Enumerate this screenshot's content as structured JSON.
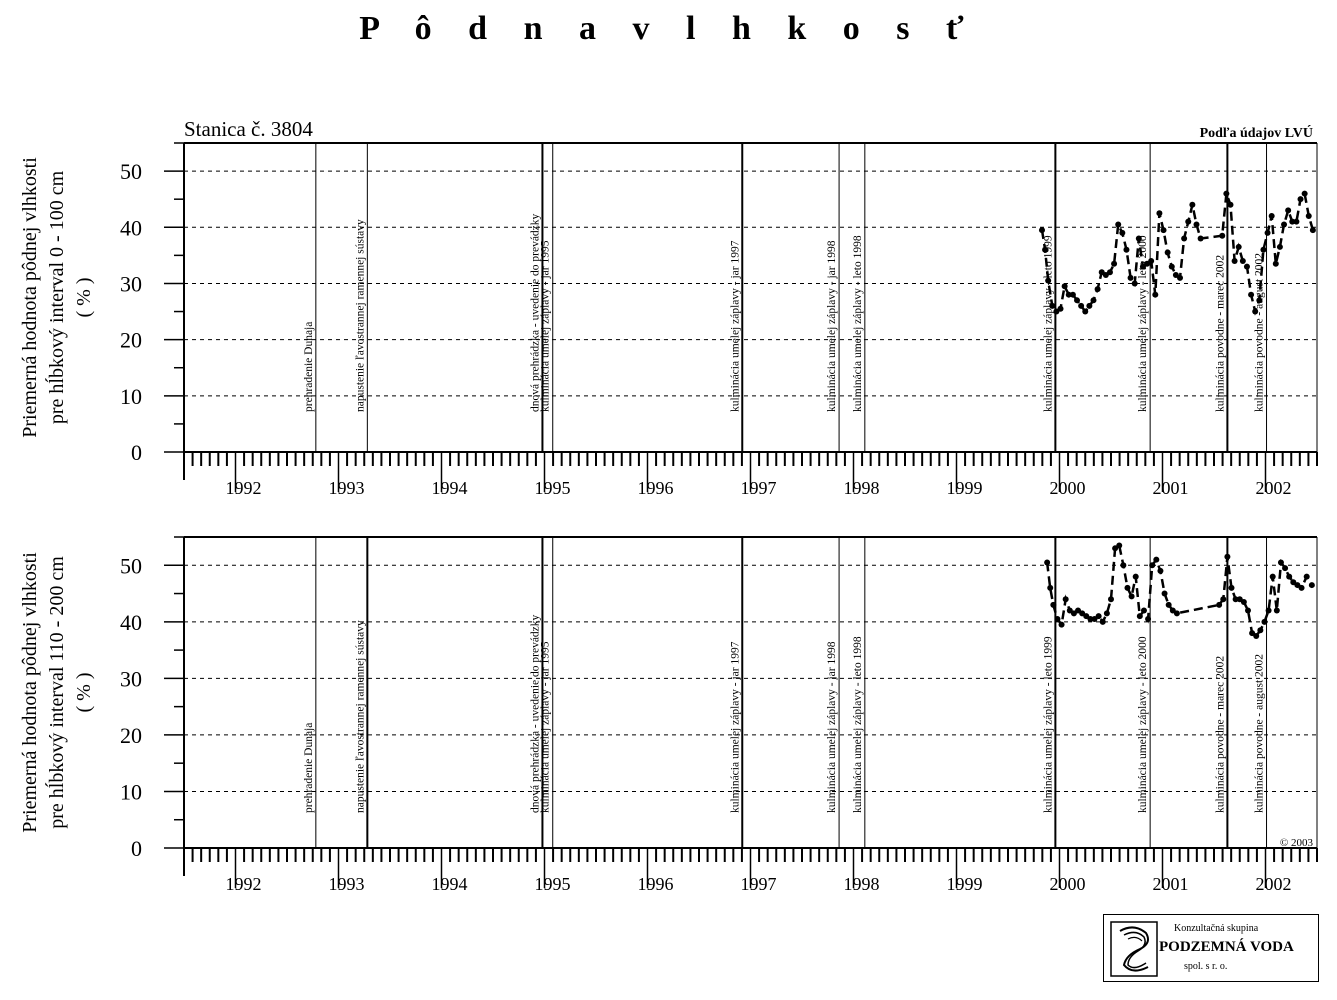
{
  "title": "P ô d n a   v l h k o s ť",
  "station": "Stanica č.  3804",
  "source_note": "Podľa údajov LVÚ",
  "copyright": "©  2003",
  "logo": {
    "line1": "Konzultačná skupina",
    "line2": "PODZEMNÁ VODA",
    "line3": "spol. s r. o."
  },
  "events": [
    {
      "x": 1992.78,
      "label": "prehradenie Dunaja"
    },
    {
      "x": 1993.28,
      "label": "napustenie ľavostrannej ramennej sústavy"
    },
    {
      "x": 1994.98,
      "label": "dnová prehrádzka - uvedenie do prevádzky"
    },
    {
      "x": 1995.08,
      "label": "kulminácia umelej záplavy - jar 1995"
    },
    {
      "x": 1996.92,
      "label": "kulminácia umelej záplavy - jar 1997"
    },
    {
      "x": 1997.86,
      "label": "kulminácia umelej záplavy - jar 1998"
    },
    {
      "x": 1998.11,
      "label": "kulminácia umelej záplavy - leto 1998"
    },
    {
      "x": 1999.96,
      "label": "kulminácia umelej záplavy - leto 1999"
    },
    {
      "x": 2000.88,
      "label": "kulminácia umelej záplavy - leto 2000"
    },
    {
      "x": 2001.63,
      "label": "kulminácia povodne - marec 2002"
    },
    {
      "x": 2002.01,
      "label": "kulminácia povodne - august 2002"
    }
  ],
  "chart_data": [
    {
      "type": "line",
      "ylabel": [
        "Priemerná hodnota pôdnej vlhkosti",
        "pre hĺbkový interval 0 - 100 cm",
        "( % )"
      ],
      "xlim": [
        1991.5,
        2002.5
      ],
      "ylim": [
        0,
        55
      ],
      "x_tick_labels": [
        "1992",
        "1993",
        "1994",
        "1995",
        "1996",
        "1997",
        "1998",
        "1999",
        "2000",
        "2001",
        "2002"
      ],
      "y_tick_labels": [
        "0",
        "10",
        "20",
        "30",
        "40",
        "50"
      ],
      "grid": "horizontal dashed",
      "x": [
        1999.83,
        1999.86,
        1999.89,
        1999.93,
        1999.97,
        2000.01,
        2000.05,
        2000.09,
        2000.13,
        2000.17,
        2000.21,
        2000.25,
        2000.29,
        2000.33,
        2000.37,
        2000.41,
        2000.45,
        2000.49,
        2000.53,
        2000.57,
        2000.61,
        2000.65,
        2000.69,
        2000.73,
        2000.77,
        2000.81,
        2000.85,
        2000.89,
        2000.93,
        2000.97,
        2001.01,
        2001.05,
        2001.09,
        2001.13,
        2001.17,
        2001.21,
        2001.25,
        2001.29,
        2001.33,
        2001.37,
        2001.58,
        2001.62,
        2001.66,
        2001.7,
        2001.74,
        2001.78,
        2001.82,
        2001.86,
        2001.9,
        2001.94,
        2001.98,
        2002.02,
        2002.06,
        2002.1,
        2002.14,
        2002.18,
        2002.22,
        2002.26,
        2002.3,
        2002.34,
        2002.38,
        2002.42,
        2002.46
      ],
      "y": [
        39.5,
        36.0,
        30.5,
        26.0,
        25.0,
        25.5,
        29.5,
        28.0,
        28.0,
        27.0,
        26.0,
        25.0,
        26.0,
        27.0,
        29.0,
        32.0,
        31.5,
        32.0,
        33.5,
        40.5,
        39.0,
        36.0,
        31.0,
        30.0,
        38.0,
        33.0,
        33.5,
        34.0,
        28.0,
        42.5,
        39.5,
        35.5,
        33.0,
        31.5,
        31.0,
        38.0,
        41.0,
        44.0,
        40.5,
        38.0,
        38.5,
        46.0,
        44.0,
        34.0,
        36.5,
        34.0,
        33.0,
        28.0,
        25.0,
        27.0,
        36.0,
        39.0,
        42.0,
        33.5,
        36.5,
        40.5,
        43.0,
        41.0,
        41.0,
        45.0,
        46.0,
        42.0,
        39.5
      ]
    },
    {
      "type": "line",
      "ylabel": [
        "Priemerná hodnota pôdnej vlhkosti",
        "pre hĺbkový interval 110 - 200 cm",
        "( % )"
      ],
      "xlim": [
        1991.5,
        2002.5
      ],
      "ylim": [
        0,
        55
      ],
      "x_tick_labels": [
        "1992",
        "1993",
        "1994",
        "1995",
        "1996",
        "1997",
        "1998",
        "1999",
        "2000",
        "2001",
        "2002"
      ],
      "y_tick_labels": [
        "0",
        "10",
        "20",
        "30",
        "40",
        "50"
      ],
      "grid": "horizontal dashed",
      "x": [
        1999.88,
        1999.91,
        1999.94,
        1999.98,
        2000.02,
        2000.06,
        2000.1,
        2000.14,
        2000.18,
        2000.22,
        2000.26,
        2000.3,
        2000.34,
        2000.38,
        2000.42,
        2000.46,
        2000.5,
        2000.54,
        2000.58,
        2000.62,
        2000.66,
        2000.7,
        2000.74,
        2000.78,
        2000.82,
        2000.86,
        2000.9,
        2000.94,
        2000.98,
        2001.02,
        2001.06,
        2001.1,
        2001.14,
        2001.55,
        2001.59,
        2001.63,
        2001.67,
        2001.71,
        2001.75,
        2001.79,
        2001.83,
        2001.87,
        2001.91,
        2001.95,
        2001.99,
        2002.03,
        2002.07,
        2002.11,
        2002.15,
        2002.19,
        2002.23,
        2002.27,
        2002.31,
        2002.35,
        2002.4,
        2002.45
      ],
      "y": [
        50.5,
        46.0,
        43.0,
        40.5,
        39.5,
        44.0,
        42.0,
        41.5,
        42.0,
        41.5,
        41.0,
        40.5,
        40.5,
        41.0,
        40.0,
        41.5,
        44.0,
        53.0,
        53.5,
        50.0,
        46.0,
        44.5,
        48.0,
        41.0,
        42.0,
        40.5,
        50.0,
        51.0,
        49.0,
        45.0,
        43.0,
        42.0,
        41.5,
        43.0,
        44.0,
        51.5,
        46.0,
        44.0,
        44.0,
        43.5,
        42.0,
        38.0,
        37.5,
        38.5,
        40.0,
        42.0,
        48.0,
        42.0,
        50.5,
        49.5,
        48.0,
        47.0,
        46.5,
        46.0,
        48.0,
        46.5
      ]
    }
  ]
}
